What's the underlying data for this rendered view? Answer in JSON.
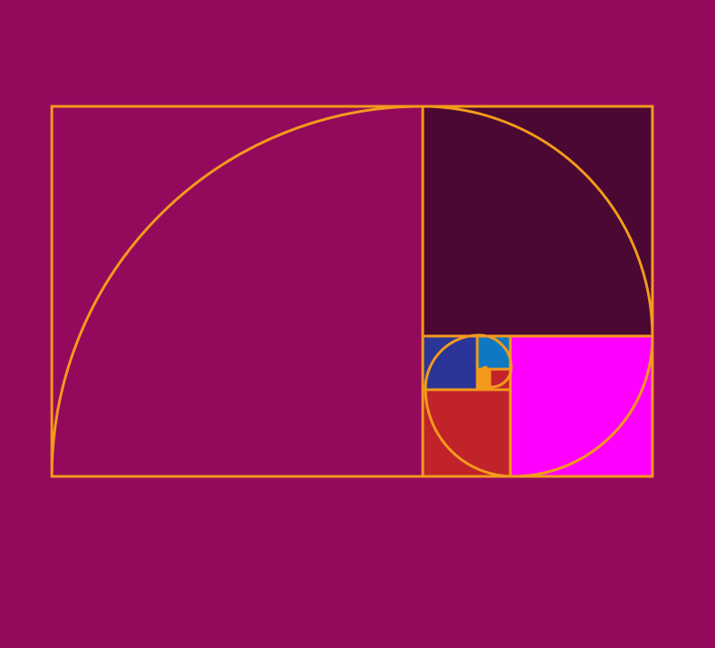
{
  "diagram": {
    "type": "golden-spiral",
    "colors": {
      "background": "#930A5C",
      "outline": "#F39A1C",
      "square_1": "#930A5C",
      "square_2": "#4A0832",
      "square_3": "#FF00FF",
      "square_4": "#C1232B",
      "square_5": "#2A3597",
      "square_6": "#0F78C2",
      "square_7": "#C1232B",
      "square_8": "#F39A1C"
    }
  }
}
